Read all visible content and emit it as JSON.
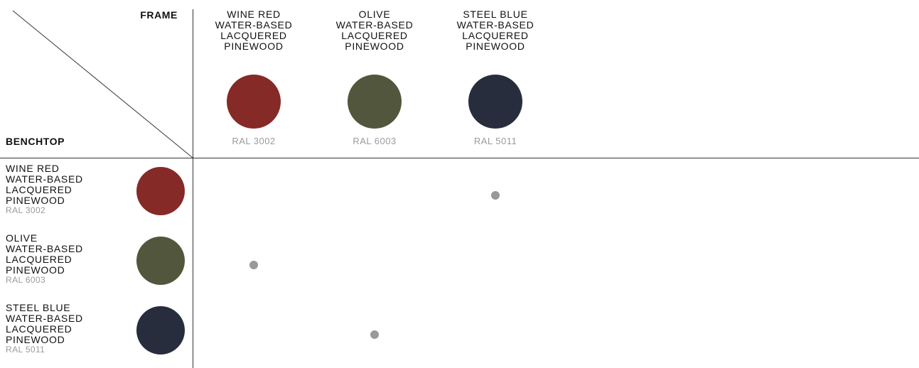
{
  "header": {
    "frame_label": "FRAME",
    "benchtop_label": "BENCHTOP"
  },
  "frames": [
    {
      "lines": [
        "WINE RED",
        "WATER-BASED",
        "LACQUERED",
        "PINEWOOD"
      ],
      "code": "RAL 3002",
      "color": "#852a27"
    },
    {
      "lines": [
        "OLIVE",
        "WATER-BASED",
        "LACQUERED",
        "PINEWOOD"
      ],
      "code": "RAL 6003",
      "color": "#52563c"
    },
    {
      "lines": [
        "STEEL BLUE",
        "WATER-BASED",
        "LACQUERED",
        "PINEWOOD"
      ],
      "code": "RAL 5011",
      "color": "#272d3d"
    }
  ],
  "benchtops": [
    {
      "lines": [
        "WINE RED",
        "WATER-BASED",
        "LACQUERED",
        "PINEWOOD"
      ],
      "code": "RAL 3002",
      "color": "#852a27"
    },
    {
      "lines": [
        "OLIVE",
        "WATER-BASED",
        "LACQUERED",
        "PINEWOOD"
      ],
      "code": "RAL 6003",
      "color": "#52563c"
    },
    {
      "lines": [
        "STEEL BLUE",
        "WATER-BASED",
        "LACQUERED",
        "PINEWOOD"
      ],
      "code": "RAL 5011",
      "color": "#272d3d"
    }
  ],
  "availability": {
    "dot_color": "#999999",
    "combinations": [
      {
        "benchtop": "RAL 3002",
        "frame": "RAL 5011"
      },
      {
        "benchtop": "RAL 6003",
        "frame": "RAL 3002"
      },
      {
        "benchtop": "RAL 5011",
        "frame": "RAL 6003"
      }
    ]
  }
}
